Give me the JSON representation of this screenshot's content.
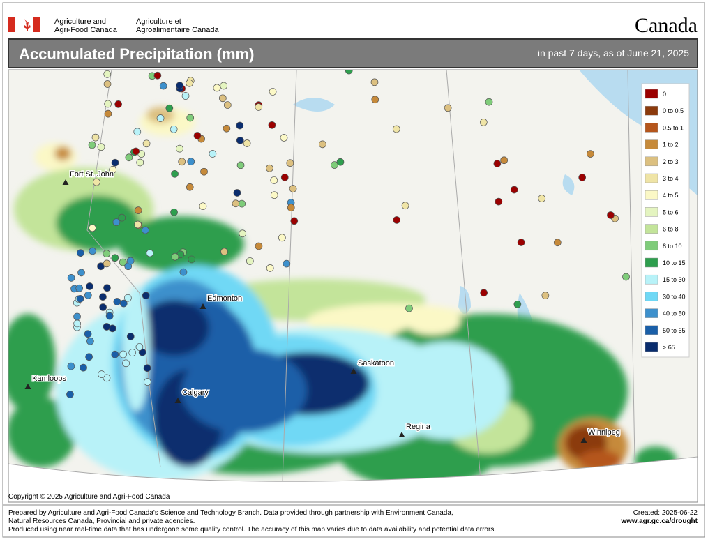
{
  "header": {
    "org_en": [
      "Agriculture and",
      "Agri-Food Canada"
    ],
    "org_fr": [
      "Agriculture et",
      "Agroalimentaire Canada"
    ],
    "wordmark": "Canada",
    "title": "Accumulated Precipitation (mm)",
    "subtitle": "in past 7 days, as of June 21, 2025"
  },
  "legend": {
    "items": [
      {
        "label": "0",
        "color": "#9b0000"
      },
      {
        "label": "0 to 0.5",
        "color": "#8b3a0c"
      },
      {
        "label": "0.5 to 1",
        "color": "#b5561c"
      },
      {
        "label": "1 to 2",
        "color": "#c68a3a"
      },
      {
        "label": "2 to 3",
        "color": "#dcc080"
      },
      {
        "label": "3 to 4",
        "color": "#efe4a6"
      },
      {
        "label": "4 to 5",
        "color": "#fbf8c6"
      },
      {
        "label": "5 to 6",
        "color": "#e4f4c0"
      },
      {
        "label": "6 to 8",
        "color": "#c3e49a"
      },
      {
        "label": "8 to 10",
        "color": "#7fcc7a"
      },
      {
        "label": "10 to 15",
        "color": "#2e9e4e"
      },
      {
        "label": "15 to 30",
        "color": "#b8f2f8"
      },
      {
        "label": "30 to 40",
        "color": "#6fd8f5"
      },
      {
        "label": "40 to 50",
        "color": "#3d90cc"
      },
      {
        "label": "50 to 65",
        "color": "#1a5fa8"
      },
      {
        "label": "> 65",
        "color": "#0a2d6e"
      }
    ]
  },
  "cities": [
    "Fort St. John",
    "Edmonton",
    "Kamloops",
    "Calgary",
    "Saskatoon",
    "Regina",
    "Winnipeg"
  ],
  "copyright": "Copyright © 2025 Agriculture and Agri-Food Canada",
  "footer": {
    "lines": [
      "Prepared by Agriculture and Agri-Food Canada's Science and Technology Branch. Data provided through partnership with Environment Canada,",
      "Natural Resources Canada, Provincial and private agencies.",
      "Produced using near real-time data that has undergone some quality control. The accuracy of this map varies due to data availability and potential data errors."
    ],
    "created": "Created: 2025-06-22",
    "url": "www.agr.gc.ca/drought"
  }
}
